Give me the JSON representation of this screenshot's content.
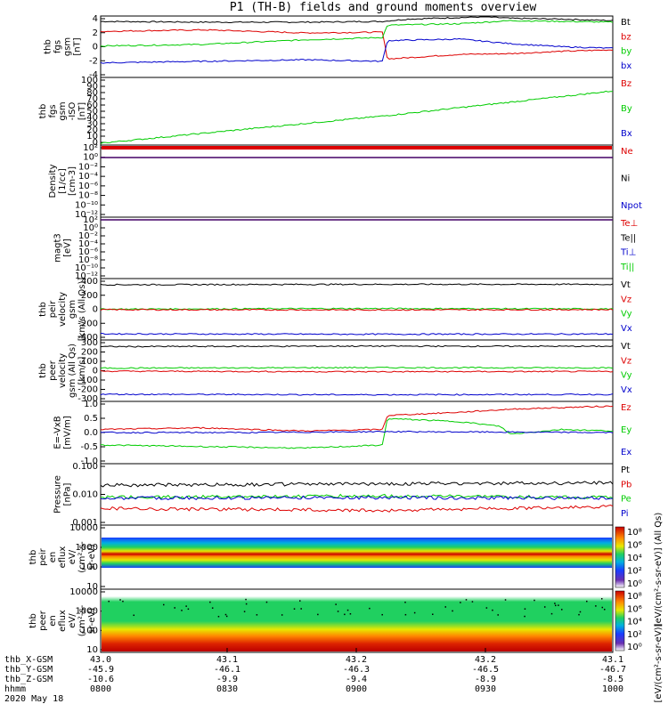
{
  "title": "P1  (TH-B)  fields and ground moments overview",
  "colors": {
    "black": "#000000",
    "red": "#dd0000",
    "green": "#00cc00",
    "blue": "#0000cc"
  },
  "chart_data": [
    {
      "type": "line",
      "ylabel": [
        "thb",
        "fgs",
        "gsm",
        "[nT]"
      ],
      "ylim": [
        -4,
        4
      ],
      "yticks": [
        "4",
        "2",
        "0",
        "-2",
        "-4"
      ],
      "legend": [
        {
          "name": "Bt",
          "color": "#000000"
        },
        {
          "name": "bz",
          "color": "#dd0000"
        },
        {
          "name": "by",
          "color": "#00cc00"
        },
        {
          "name": "bx",
          "color": "#0000cc"
        }
      ],
      "series": [
        {
          "name": "Bt",
          "color": "#000000",
          "x": [
            0,
            0.2,
            0.4,
            0.55,
            0.6,
            0.75,
            0.8,
            0.9,
            1.0
          ],
          "y": [
            3.3,
            3.2,
            3.2,
            3.3,
            3.6,
            3.9,
            3.7,
            3.6,
            3.4
          ]
        },
        {
          "name": "bz",
          "color": "#dd0000",
          "x": [
            0,
            0.2,
            0.4,
            0.55,
            0.56,
            0.7,
            0.8,
            0.9,
            1.0
          ],
          "y": [
            2.0,
            2.2,
            1.8,
            1.9,
            -1.6,
            -1.0,
            -0.9,
            -0.6,
            -0.4
          ]
        },
        {
          "name": "by",
          "color": "#00cc00",
          "x": [
            0,
            0.2,
            0.3,
            0.4,
            0.55,
            0.56,
            0.7,
            0.8,
            0.9,
            1.0
          ],
          "y": [
            0.1,
            0.3,
            0.6,
            0.9,
            1.2,
            2.8,
            3.0,
            3.4,
            3.3,
            3.2
          ]
        },
        {
          "name": "bx",
          "color": "#0000cc",
          "x": [
            0,
            0.2,
            0.4,
            0.55,
            0.56,
            0.7,
            0.8,
            0.9,
            1.0
          ],
          "y": [
            -2.1,
            -1.9,
            -1.7,
            -1.9,
            0.8,
            1.0,
            0.4,
            0.0,
            -0.2
          ]
        }
      ]
    },
    {
      "type": "line",
      "ylabel": [
        "thb",
        "fgs",
        "gsm",
        "-ISO",
        "[nT]"
      ],
      "ylim": [
        -5,
        100
      ],
      "yticks": [
        "100",
        "90",
        "80",
        "70",
        "60",
        "50",
        "40",
        "30",
        "20",
        "10",
        "0"
      ],
      "legend": [
        {
          "name": "Bz",
          "color": "#dd0000"
        },
        {
          "name": "By",
          "color": "#00cc00"
        },
        {
          "name": "Bx",
          "color": "#0000cc"
        }
      ],
      "series": [
        {
          "name": "By",
          "color": "#00cc00",
          "x": [
            0,
            0.55,
            1.0
          ],
          "y": [
            -2,
            40,
            79
          ]
        }
      ]
    },
    {
      "type": "line",
      "ylabel": [
        "Density",
        "[1/cc]",
        "[cm-3]"
      ],
      "yticks": [
        "10²",
        "10⁰",
        "10⁻²",
        "10⁻⁴",
        "10⁻⁶",
        "10⁻⁸",
        "10⁻¹⁰",
        "10⁻¹²"
      ],
      "legend": [
        {
          "name": "Ne",
          "color": "#dd0000"
        },
        {
          "name": "Ni",
          "color": "#000000"
        },
        {
          "name": "Npot",
          "color": "#0000cc"
        }
      ]
    },
    {
      "type": "line",
      "ylabel": [
        "magt3",
        "[eV]"
      ],
      "yticks": [
        "10²",
        "10⁰",
        "10⁻²",
        "10⁻⁴",
        "10⁻⁶",
        "10⁻⁸",
        "10⁻¹⁰",
        "10⁻¹²"
      ],
      "legend": [
        {
          "name": "Te⊥",
          "color": "#dd0000"
        },
        {
          "name": "Te||",
          "color": "#000000"
        },
        {
          "name": "Ti⊥",
          "color": "#0000cc"
        },
        {
          "name": "Ti||",
          "color": "#00cc00"
        }
      ]
    },
    {
      "type": "line",
      "ylabel": [
        "thb",
        "peir",
        "velocity",
        "gsm",
        "[km/s (All Qs)]"
      ],
      "ylim": [
        -400,
        400
      ],
      "yticks": [
        "400",
        "200",
        "0",
        "-200",
        "-400"
      ],
      "legend": [
        {
          "name": "Vt",
          "color": "#000000"
        },
        {
          "name": "Vz",
          "color": "#dd0000"
        },
        {
          "name": "Vy",
          "color": "#00cc00"
        },
        {
          "name": "Vx",
          "color": "#0000cc"
        }
      ],
      "series": [
        {
          "name": "Vt",
          "color": "#000000",
          "x": [
            0,
            0.5,
            1.0
          ],
          "y": [
            320,
            325,
            325
          ]
        },
        {
          "name": "Vy",
          "color": "#00cc00",
          "x": [
            0,
            0.5,
            1.0
          ],
          "y": [
            2,
            10,
            5
          ]
        },
        {
          "name": "Vz",
          "color": "#dd0000",
          "x": [
            0,
            0.5,
            1.0
          ],
          "y": [
            -5,
            -8,
            -4
          ]
        },
        {
          "name": "Vx",
          "color": "#0000cc",
          "x": [
            0,
            0.5,
            1.0
          ],
          "y": [
            -320,
            -325,
            -322
          ]
        }
      ]
    },
    {
      "type": "line",
      "ylabel": [
        "thb",
        "peer",
        "velocity",
        "gsm (All Qs)",
        "[km/s]"
      ],
      "ylim": [
        -300,
        300
      ],
      "yticks": [
        "300",
        "200",
        "100",
        "0",
        "-100",
        "-200",
        "-300"
      ],
      "legend": [
        {
          "name": "Vt",
          "color": "#000000"
        },
        {
          "name": "Vz",
          "color": "#dd0000"
        },
        {
          "name": "Vy",
          "color": "#00cc00"
        },
        {
          "name": "Vx",
          "color": "#0000cc"
        }
      ],
      "series": [
        {
          "name": "Vt",
          "color": "#000000",
          "x": [
            0,
            0.5,
            1.0
          ],
          "y": [
            235,
            240,
            238
          ]
        },
        {
          "name": "Vy",
          "color": "#00cc00",
          "x": [
            0,
            0.5,
            1.0
          ],
          "y": [
            25,
            30,
            28
          ]
        },
        {
          "name": "Vz",
          "color": "#dd0000",
          "x": [
            0,
            0.5,
            1.0
          ],
          "y": [
            -5,
            -10,
            -8
          ]
        },
        {
          "name": "Vx",
          "color": "#0000cc",
          "x": [
            0,
            0.5,
            1.0
          ],
          "y": [
            -230,
            -235,
            -232
          ]
        }
      ]
    },
    {
      "type": "line",
      "ylabel": [
        "E=-VxB",
        "[mV/m]"
      ],
      "ylim": [
        -1.0,
        1.0
      ],
      "yticks": [
        "1.0",
        "0.5",
        "0.0",
        "-0.5",
        "-1.0"
      ],
      "legend": [
        {
          "name": "Ez",
          "color": "#dd0000"
        },
        {
          "name": "Ey",
          "color": "#00cc00"
        },
        {
          "name": "Ex",
          "color": "#0000cc"
        }
      ],
      "series": [
        {
          "name": "Ez",
          "color": "#dd0000",
          "x": [
            0,
            0.2,
            0.4,
            0.55,
            0.56,
            0.7,
            0.8,
            0.9,
            1.0
          ],
          "y": [
            0.1,
            0.15,
            0.05,
            0.1,
            0.55,
            0.65,
            0.75,
            0.8,
            0.85
          ]
        },
        {
          "name": "Ey",
          "color": "#00cc00",
          "x": [
            0,
            0.2,
            0.4,
            0.55,
            0.56,
            0.7,
            0.78,
            0.8,
            0.9,
            1.0
          ],
          "y": [
            -0.4,
            -0.45,
            -0.5,
            -0.4,
            0.45,
            0.35,
            0.2,
            -0.05,
            0.1,
            0.05
          ]
        },
        {
          "name": "Ex",
          "color": "#0000cc",
          "x": [
            0,
            0.3,
            0.55,
            0.7,
            1.0
          ],
          "y": [
            0.0,
            0.0,
            0.03,
            0.02,
            0.0
          ]
        }
      ]
    },
    {
      "type": "line",
      "ylabel": [
        "Pressure",
        "[nPa]"
      ],
      "ylim": [
        0.001,
        0.1
      ],
      "yticks": [
        "0.100",
        "0.010",
        "0.001"
      ],
      "legend": [
        {
          "name": "Pt",
          "color": "#000000"
        },
        {
          "name": "Pb",
          "color": "#dd0000"
        },
        {
          "name": "Pe",
          "color": "#00cc00"
        },
        {
          "name": "Pi",
          "color": "#0000cc"
        }
      ],
      "series": [
        {
          "name": "Pt",
          "color": "#000000",
          "x": [
            0,
            0.5,
            1.0
          ],
          "y": [
            0.02,
            0.022,
            0.024
          ]
        },
        {
          "name": "Pe",
          "color": "#00cc00",
          "x": [
            0,
            0.5,
            1.0
          ],
          "y": [
            0.008,
            0.009,
            0.008
          ]
        },
        {
          "name": "Pi",
          "color": "#0000cc",
          "x": [
            0,
            0.5,
            1.0
          ],
          "y": [
            0.0075,
            0.008,
            0.0075
          ]
        },
        {
          "name": "Pb",
          "color": "#dd0000",
          "x": [
            0,
            0.55,
            1.0
          ],
          "y": [
            0.0035,
            0.003,
            0.004
          ]
        }
      ]
    },
    {
      "type": "heatmap",
      "ylabel": [
        "thb",
        "peir",
        "en",
        "eflux",
        "eV/",
        "(cm²-s-",
        "sr-eV)"
      ],
      "yticks": [
        "10000",
        "1000",
        "100",
        "10"
      ],
      "colorbar_label": "[eV/(cm²-s-sr-eV)] (All Qs)",
      "colorbar_ticks": [
        "10⁸",
        "10⁶",
        "10⁴",
        "10²",
        "10⁰"
      ]
    },
    {
      "type": "heatmap",
      "ylabel": [
        "thb",
        "peer",
        "en",
        "eflux",
        "eV/",
        "(cm²-s-",
        "sr-eV)"
      ],
      "yticks": [
        "10000",
        "1000",
        "100",
        "10"
      ],
      "colorbar_ticks": [
        "10⁸",
        "10⁶",
        "10⁴",
        "10²",
        "10⁰"
      ]
    }
  ],
  "x_axis": {
    "rows": [
      {
        "label": "thb_X-GSM",
        "values": [
          "43.0",
          "43.1",
          "43.2",
          "43.2",
          "43.1"
        ]
      },
      {
        "label": "thb_Y-GSM",
        "values": [
          "-45.9",
          "-46.1",
          "-46.3",
          "-46.5",
          "-46.7"
        ]
      },
      {
        "label": "thb_Z-GSM",
        "values": [
          "-10.6",
          "-9.9",
          "-9.4",
          "-8.9",
          "-8.5"
        ]
      },
      {
        "label": "hhmm",
        "values": [
          "0800",
          "0830",
          "0900",
          "0930",
          "1000"
        ]
      }
    ],
    "date": "2020 May 18"
  },
  "colorbar_overall_label": "[eV/(cm²-s-sr-eV)]"
}
